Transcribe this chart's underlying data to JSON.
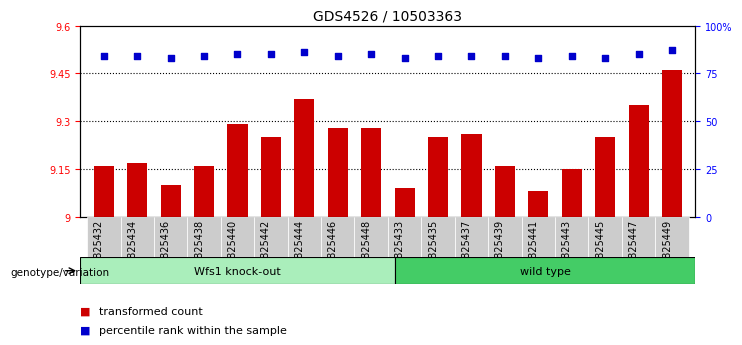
{
  "title": "GDS4526 / 10503363",
  "categories": [
    "GSM825432",
    "GSM825434",
    "GSM825436",
    "GSM825438",
    "GSM825440",
    "GSM825442",
    "GSM825444",
    "GSM825446",
    "GSM825448",
    "GSM825433",
    "GSM825435",
    "GSM825437",
    "GSM825439",
    "GSM825441",
    "GSM825443",
    "GSM825445",
    "GSM825447",
    "GSM825449"
  ],
  "bar_values": [
    9.16,
    9.17,
    9.1,
    9.16,
    9.29,
    9.25,
    9.37,
    9.28,
    9.28,
    9.09,
    9.25,
    9.26,
    9.16,
    9.08,
    9.15,
    9.25,
    9.35,
    9.46
  ],
  "percentile_values": [
    84,
    84,
    83,
    84,
    85,
    85,
    86,
    84,
    85,
    83,
    84,
    84,
    84,
    83,
    84,
    83,
    85,
    87
  ],
  "group1_label": "Wfs1 knock-out",
  "group2_label": "wild type",
  "group1_count": 9,
  "group2_count": 9,
  "bar_color": "#cc0000",
  "dot_color": "#0000cc",
  "group1_bg": "#aaeebb",
  "group2_bg": "#44cc66",
  "tick_bg": "#cccccc",
  "ylim_left": [
    9.0,
    9.6
  ],
  "ylim_right": [
    0,
    100
  ],
  "yticks_left": [
    9.0,
    9.15,
    9.3,
    9.45,
    9.6
  ],
  "yticks_right": [
    0,
    25,
    50,
    75,
    100
  ],
  "ytick_labels_left": [
    "9",
    "9.15",
    "9.3",
    "9.45",
    "9.6"
  ],
  "ytick_labels_right": [
    "0",
    "25",
    "50",
    "75",
    "100%"
  ],
  "hlines": [
    9.15,
    9.3,
    9.45
  ],
  "legend_entries": [
    "transformed count",
    "percentile rank within the sample"
  ],
  "genotype_label": "genotype/variation",
  "title_fontsize": 10,
  "tick_fontsize": 7,
  "bar_width": 0.6
}
